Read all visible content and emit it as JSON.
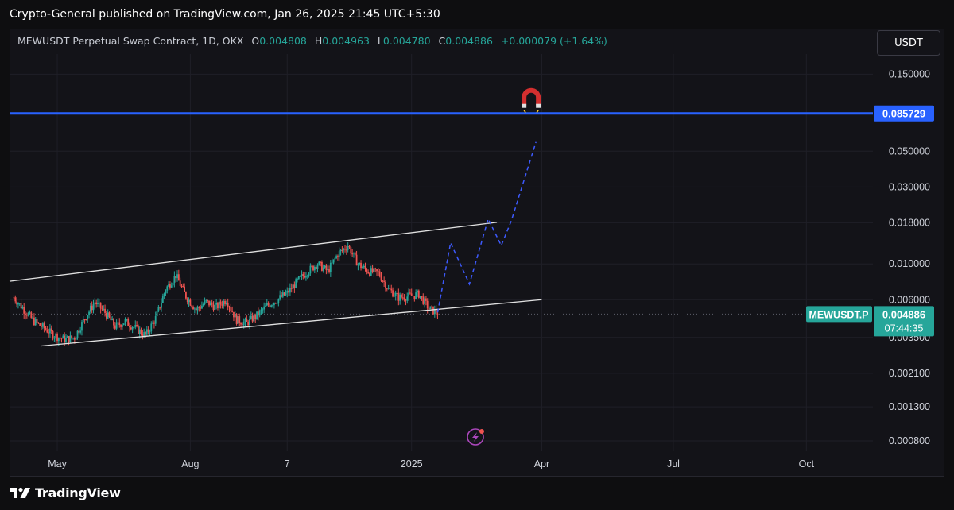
{
  "header": {
    "publisher_line": "Crypto-General published on TradingView.com, Jan 26, 2025 21:45 UTC+5:30"
  },
  "legend": {
    "symbol": "MEWUSDT Perpetual Swap Contract, 1D, OKX",
    "o_label": "O",
    "o_value": "0.004808",
    "h_label": "H",
    "h_value": "0.004963",
    "l_label": "L",
    "l_value": "0.004780",
    "c_label": "C",
    "c_value": "0.004886",
    "change": "+0.000079 (+1.64%)"
  },
  "currency_button": "USDT",
  "footer": {
    "brand": "TradingView"
  },
  "colors": {
    "background": "#131318",
    "up": "#26a69a",
    "down": "#ef5350",
    "horizontal_line": "#2962ff",
    "projection": "#3d5afe",
    "channel": "#e0e0e0"
  },
  "icons": {
    "magnet": "magnet-icon",
    "lightning": "lightning-icon",
    "logo": "tradingview-logo-icon"
  },
  "chart_data": {
    "type": "candlestick",
    "symbol": "MEWUSDT",
    "timeframe": "1D",
    "scale": "log",
    "y_ticks": [
      "0.150000",
      "0.050000",
      "0.030000",
      "0.018000",
      "0.010000",
      "0.006000",
      "0.003500",
      "0.002100",
      "0.001300",
      "0.000800"
    ],
    "y_tick_values": [
      0.15,
      0.05,
      0.03,
      0.018,
      0.01,
      0.006,
      0.0035,
      0.0021,
      0.0013,
      0.0008
    ],
    "ylim": [
      0.00069,
      0.2
    ],
    "x_ticks": [
      "May",
      "Aug",
      "7",
      "2025",
      "Apr",
      "Jul",
      "Oct"
    ],
    "x_tick_dates": [
      "2024-05-01",
      "2024-08-01",
      "2024-10-07",
      "2025-01-01",
      "2025-04-01",
      "2025-07-01",
      "2025-10-01"
    ],
    "xlim": [
      "2024-03-29",
      "2025-11-16"
    ],
    "last_price": {
      "label": "MEWUSDT.P",
      "value": "0.004886",
      "countdown": "07:44:35"
    },
    "horizontal_level": {
      "value": 0.085729,
      "label": "0.085729"
    },
    "channel": {
      "upper": [
        {
          "date": "2024-03-29",
          "price": 0.0078
        },
        {
          "date": "2025-03-01",
          "price": 0.0181
        }
      ],
      "lower": [
        {
          "date": "2024-04-20",
          "price": 0.0031
        },
        {
          "date": "2025-04-01",
          "price": 0.006
        }
      ]
    },
    "projection": [
      {
        "date": "2025-01-19",
        "price": 0.005
      },
      {
        "date": "2025-01-28",
        "price": 0.0135
      },
      {
        "date": "2025-02-10",
        "price": 0.0075
      },
      {
        "date": "2025-02-23",
        "price": 0.019
      },
      {
        "date": "2025-03-04",
        "price": 0.013
      },
      {
        "date": "2025-03-11",
        "price": 0.0185
      },
      {
        "date": "2025-03-28",
        "price": 0.057
      }
    ],
    "candles_weekly_close": [
      {
        "date": "2024-04-01",
        "price": 0.0062
      },
      {
        "date": "2024-04-08",
        "price": 0.0052
      },
      {
        "date": "2024-04-15",
        "price": 0.0044
      },
      {
        "date": "2024-04-22",
        "price": 0.004
      },
      {
        "date": "2024-04-29",
        "price": 0.0036
      },
      {
        "date": "2024-05-06",
        "price": 0.0034
      },
      {
        "date": "2024-05-13",
        "price": 0.0035
      },
      {
        "date": "2024-05-20",
        "price": 0.0046
      },
      {
        "date": "2024-05-27",
        "price": 0.0058
      },
      {
        "date": "2024-06-03",
        "price": 0.005
      },
      {
        "date": "2024-06-10",
        "price": 0.0041
      },
      {
        "date": "2024-06-17",
        "price": 0.0044
      },
      {
        "date": "2024-06-24",
        "price": 0.004
      },
      {
        "date": "2024-07-01",
        "price": 0.0036
      },
      {
        "date": "2024-07-08",
        "price": 0.0046
      },
      {
        "date": "2024-07-15",
        "price": 0.007
      },
      {
        "date": "2024-07-22",
        "price": 0.0085
      },
      {
        "date": "2024-07-29",
        "price": 0.0063
      },
      {
        "date": "2024-08-05",
        "price": 0.0052
      },
      {
        "date": "2024-08-12",
        "price": 0.0058
      },
      {
        "date": "2024-08-19",
        "price": 0.0054
      },
      {
        "date": "2024-08-26",
        "price": 0.006
      },
      {
        "date": "2024-09-02",
        "price": 0.0045
      },
      {
        "date": "2024-09-09",
        "price": 0.0043
      },
      {
        "date": "2024-09-16",
        "price": 0.0048
      },
      {
        "date": "2024-09-23",
        "price": 0.0055
      },
      {
        "date": "2024-09-30",
        "price": 0.006
      },
      {
        "date": "2024-10-07",
        "price": 0.0066
      },
      {
        "date": "2024-10-14",
        "price": 0.0078
      },
      {
        "date": "2024-10-21",
        "price": 0.009
      },
      {
        "date": "2024-10-28",
        "price": 0.01
      },
      {
        "date": "2024-11-04",
        "price": 0.009
      },
      {
        "date": "2024-11-11",
        "price": 0.0115
      },
      {
        "date": "2024-11-18",
        "price": 0.013
      },
      {
        "date": "2024-11-25",
        "price": 0.01
      },
      {
        "date": "2024-12-02",
        "price": 0.009
      },
      {
        "date": "2024-12-09",
        "price": 0.0088
      },
      {
        "date": "2024-12-16",
        "price": 0.007
      },
      {
        "date": "2024-12-23",
        "price": 0.0062
      },
      {
        "date": "2024-12-30",
        "price": 0.0063
      },
      {
        "date": "2025-01-06",
        "price": 0.0065
      },
      {
        "date": "2025-01-13",
        "price": 0.0053
      },
      {
        "date": "2025-01-20",
        "price": 0.0049
      }
    ]
  }
}
